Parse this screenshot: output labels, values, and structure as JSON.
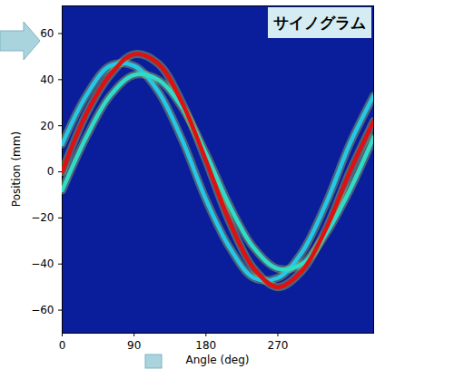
{
  "chart_data": {
    "type": "line",
    "title": "サイノグラム",
    "x_label": "Angle (deg)",
    "y_label": "Position (mm)",
    "x": [
      0,
      30,
      60,
      90,
      120,
      150,
      180,
      210,
      240,
      270,
      300,
      330,
      360,
      390
    ],
    "series": [
      {
        "color": "#24c8e6",
        "values": [
          12,
          33,
          46,
          46,
          35,
          14,
          -12,
          -33,
          -46,
          -46,
          -35,
          -14,
          12,
          33
        ]
      },
      {
        "color": "#30dcc8",
        "values": [
          -8,
          15,
          33,
          42,
          40,
          28,
          8,
          -15,
          -33,
          -42,
          -40,
          -27,
          -8,
          15
        ]
      },
      {
        "color": "#e01010",
        "values": [
          0,
          25,
          42,
          51,
          47,
          30,
          5,
          -22,
          -42,
          -50,
          -43,
          -25,
          0,
          22
        ]
      }
    ],
    "xlim": [
      0,
      390
    ],
    "ylim": [
      -70,
      72
    ],
    "xticks": [
      0,
      90,
      180,
      270
    ],
    "yticks": [
      -60,
      -40,
      -20,
      0,
      20,
      40,
      60
    ],
    "grid": false
  }
}
